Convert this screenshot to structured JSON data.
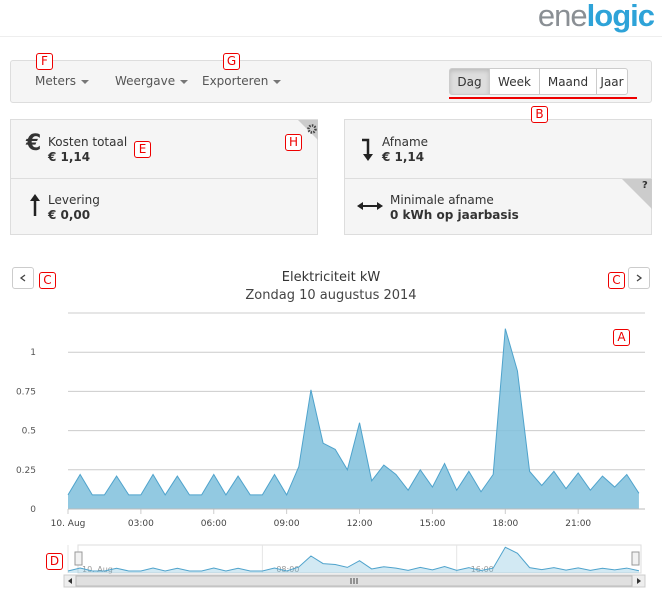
{
  "logo": {
    "part1": "ene",
    "part2": "logic"
  },
  "nav": {
    "menus": [
      "Meters",
      "Weergave",
      "Exporteren"
    ],
    "periods": [
      "Dag",
      "Week",
      "Maand",
      "Jaar"
    ],
    "active": 0
  },
  "cards": [
    {
      "icon": "€",
      "label": "Kosten totaal",
      "value": "€ 1,14"
    },
    {
      "label": "Levering",
      "value": "€ 0,00"
    },
    {
      "label": "Afname",
      "value": "€ 1,14"
    },
    {
      "label": "Minimale afname",
      "value": "0 kWh op jaarbasis",
      "help": "?"
    }
  ],
  "annotations": [
    "F",
    "G",
    "B",
    "E",
    "H",
    "C",
    "C",
    "A",
    "D"
  ],
  "chart_data": {
    "type": "area",
    "title": "Elektriciteit kW",
    "subtitle": "Zondag 10 augustus 2014",
    "x": [
      0,
      0.5,
      1,
      1.5,
      2,
      2.5,
      3,
      3.5,
      4,
      4.5,
      5,
      5.5,
      6,
      6.5,
      7,
      7.5,
      8,
      8.5,
      9,
      9.5,
      10,
      10.5,
      11,
      11.5,
      12,
      12.5,
      13,
      13.5,
      14,
      14.5,
      15,
      15.5,
      16,
      16.5,
      17,
      17.5,
      18,
      18.5,
      19,
      19.5,
      20,
      20.5,
      21,
      21.5,
      22,
      22.5,
      23,
      23.5
    ],
    "series": [
      {
        "color": "#7fbfdc",
        "values": [
          0.09,
          0.22,
          0.09,
          0.09,
          0.21,
          0.09,
          0.09,
          0.22,
          0.09,
          0.21,
          0.09,
          0.09,
          0.22,
          0.09,
          0.21,
          0.09,
          0.09,
          0.22,
          0.09,
          0.27,
          0.76,
          0.42,
          0.38,
          0.25,
          0.55,
          0.18,
          0.28,
          0.22,
          0.12,
          0.25,
          0.14,
          0.29,
          0.12,
          0.24,
          0.11,
          0.22,
          1.15,
          0.88,
          0.24,
          0.15,
          0.24,
          0.13,
          0.23,
          0.12,
          0.21,
          0.14,
          0.22,
          0.1
        ]
      }
    ],
    "xlim": [
      0,
      23.75
    ],
    "ylim": [
      0,
      1.25
    ],
    "yticks": [
      0,
      0.25,
      0.5,
      0.75,
      1
    ],
    "xticks": [
      {
        "value": 0,
        "label": "10. Aug"
      },
      {
        "value": 3,
        "label": "03:00"
      },
      {
        "value": 6,
        "label": "06:00"
      },
      {
        "value": 9,
        "label": "09:00"
      },
      {
        "value": 12,
        "label": "12:00"
      },
      {
        "value": 15,
        "label": "15:00"
      },
      {
        "value": 18,
        "label": "18:00"
      },
      {
        "value": 21,
        "label": "21:00"
      }
    ],
    "navigator_ticks": [
      {
        "value": 0,
        "label": "10. Aug"
      },
      {
        "value": 8,
        "label": "08:00"
      },
      {
        "value": 16,
        "label": "16:00"
      }
    ],
    "grid": true
  }
}
